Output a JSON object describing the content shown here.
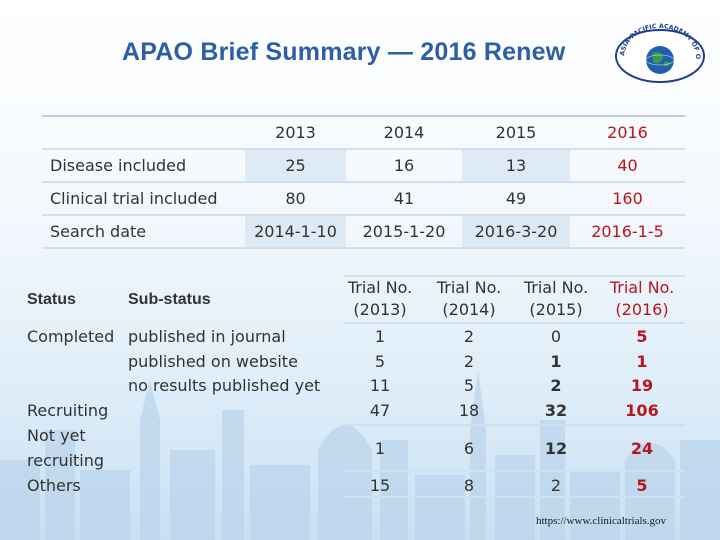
{
  "title": "APAO Brief Summary — 2016 Renew",
  "logo": {
    "arc_text": "ASIA-PACIFIC ACADEMY OF OPHTHALMOLOGY"
  },
  "summary": {
    "years": [
      "2013",
      "2014",
      "2015",
      "2016"
    ],
    "rows": [
      {
        "label": "Disease included",
        "values": [
          "25",
          "16",
          "13",
          "40"
        ]
      },
      {
        "label": "Clinical trial included",
        "values": [
          "80",
          "41",
          "49",
          "160"
        ]
      },
      {
        "label": "Search date",
        "values": [
          "2014-1-10",
          "2015-1-20",
          "2016-3-20",
          "2016-1-5"
        ]
      }
    ]
  },
  "status_table": {
    "status_header": "Status",
    "substatus_header": "Sub-status",
    "columns": [
      {
        "line1": "Trial No.",
        "line2": "(2013)"
      },
      {
        "line1": "Trial No.",
        "line2": "(2014)"
      },
      {
        "line1": "Trial No.",
        "line2": "(2015)"
      },
      {
        "line1": "Trial No.",
        "line2": "(2016)"
      }
    ],
    "completed_label": "Completed",
    "substatuses": [
      "published in journal",
      "published on website",
      "no results published yet"
    ],
    "completed_rows": [
      [
        "1",
        "2",
        "0",
        "5"
      ],
      [
        "5",
        "2",
        "1",
        "1"
      ],
      [
        "11",
        "5",
        "2",
        "19"
      ]
    ],
    "recruiting": {
      "label": "Recruiting",
      "values": [
        "47",
        "18",
        "32",
        "106"
      ]
    },
    "not_yet": {
      "label_line1": "Not yet",
      "label_line2": "recruiting",
      "values": [
        "1",
        "6",
        "12",
        "24"
      ]
    },
    "others": {
      "label": "Others",
      "values": [
        "15",
        "8",
        "2",
        "5"
      ]
    }
  },
  "source_url": "https://www.clinicaltrials.gov",
  "colors": {
    "title": "#2d5ea6",
    "accent_red": "#b8161b"
  }
}
